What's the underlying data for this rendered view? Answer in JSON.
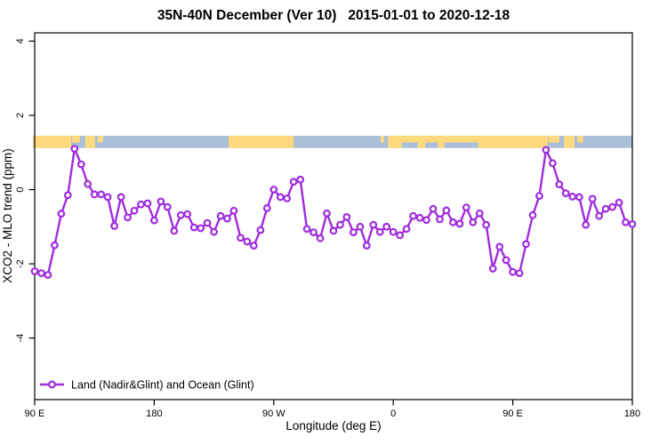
{
  "title": "35N-40N December (Ver 10)   2015-01-01 to 2020-12-18",
  "axes": {
    "x_label": "Longitude (deg E)",
    "y_label": "XCO2 - MLO trend (ppm)"
  },
  "legend": {
    "label": "Land (Nadir&Glint) and Ocean (Glint)",
    "marker": "open-circle-on-line"
  },
  "colors": {
    "line": "#A02CDD",
    "marker_fill": "#FFFFFF",
    "land": "#FFD97E",
    "ocean": "#AABFDA",
    "frame": "#000000"
  },
  "chart_data": {
    "type": "line",
    "title": "35N-40N December (Ver 10)   2015-01-01 to 2020-12-18",
    "xlabel": "Longitude (deg E)",
    "ylabel": "XCO2 - MLO trend (ppm)",
    "x_ticks": [
      "90 E",
      "180",
      "90 W",
      "0",
      "90 E",
      "180"
    ],
    "y_ticks": [
      "4",
      "2",
      "0",
      "-2",
      "-4"
    ],
    "x_axis_range_deg_east": [
      90,
      540
    ],
    "y_axis_range": [
      -5.6,
      4.2
    ],
    "grid": false,
    "legend_position": "bottom-left-inside",
    "x_deg_start": 90,
    "x_deg_step": 5,
    "n_points": 91,
    "series": [
      {
        "name": "Land (Nadir&Glint) and Ocean (Glint)",
        "values": [
          -2.2,
          -2.25,
          -2.3,
          -1.5,
          -0.65,
          -0.15,
          1.1,
          0.68,
          0.15,
          -0.13,
          -0.13,
          -0.2,
          -0.98,
          -0.2,
          -0.75,
          -0.57,
          -0.4,
          -0.37,
          -0.83,
          -0.32,
          -0.47,
          -1.11,
          -0.69,
          -0.66,
          -1.02,
          -1.04,
          -0.9,
          -1.14,
          -0.71,
          -0.78,
          -0.57,
          -1.3,
          -1.4,
          -1.51,
          -1.09,
          -0.5,
          0.0,
          -0.2,
          -0.24,
          0.21,
          0.27,
          -1.06,
          -1.15,
          -1.31,
          -0.64,
          -1.11,
          -0.95,
          -0.74,
          -1.15,
          -1.0,
          -1.51,
          -0.95,
          -1.14,
          -1.0,
          -1.14,
          -1.23,
          -1.06,
          -0.71,
          -0.76,
          -0.82,
          -0.52,
          -0.8,
          -0.56,
          -0.88,
          -0.92,
          -0.48,
          -0.88,
          -0.64,
          -0.95,
          -2.13,
          -1.54,
          -1.9,
          -2.22,
          -2.25,
          -1.47,
          -0.69,
          -0.17,
          1.07,
          0.71,
          0.14,
          -0.1,
          -0.19,
          -0.2,
          -0.95,
          -0.25,
          -0.71,
          -0.52,
          -0.47,
          -0.35,
          -0.88,
          -0.93
        ]
      }
    ],
    "band": {
      "description": "land/ocean map strip across all longitudes",
      "value_range": [
        1.12,
        1.45
      ],
      "land_segments_deg": [
        [
          89,
          117.5,
          "full"
        ],
        [
          118,
          124,
          "top"
        ],
        [
          128,
          135.5,
          "full"
        ],
        [
          137.5,
          141.5,
          "top"
        ],
        [
          236,
          285,
          "full"
        ],
        [
          350.5,
          353,
          "top"
        ],
        [
          356,
          476.5,
          "top"
        ],
        [
          356,
          366.5,
          "bottom"
        ],
        [
          378.5,
          384,
          "bottom"
        ],
        [
          393.5,
          398.5,
          "bottom"
        ],
        [
          424,
          476.5,
          "bottom"
        ],
        [
          477,
          485,
          "top"
        ],
        [
          488.5,
          496.5,
          "full"
        ],
        [
          498.5,
          503,
          "top"
        ]
      ]
    }
  }
}
